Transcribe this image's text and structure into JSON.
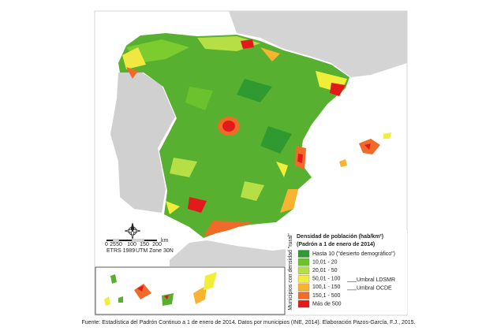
{
  "legend": {
    "title": "Densidad de población (hab/km²)",
    "subtitle": "(Padrón a 1 de enero de 2014)",
    "group_label": "Municipios con densidad \"rural\"",
    "items": [
      {
        "label": "Hasta 10 (\"desierto demográfico\")",
        "color": "#2f9a2f"
      },
      {
        "label": "10,01 - 20",
        "color": "#6cc22c"
      },
      {
        "label": "20,01 - 50",
        "color": "#b6df45"
      },
      {
        "label": "50,01 - 100",
        "color": "#f1ee3a"
      },
      {
        "label": "100,1 - 150",
        "color": "#f8b431"
      },
      {
        "label": "150,1 - 500",
        "color": "#f06a2a"
      },
      {
        "label": "Más de 500",
        "color": "#e31a1c"
      }
    ],
    "thresholds": [
      "Umbral LDSMR",
      "Umbral OCDE"
    ]
  },
  "scale_bar": {
    "labels": [
      "0",
      "25",
      "50",
      "100",
      "150",
      "200"
    ],
    "unit": "km"
  },
  "projection": [
    "ETRS 1989",
    "UTM Zone 30N"
  ],
  "source": "Fuente: Estadística del Padrón Continuo a 1 de enero de 2014. Datos por municipios (INE, 2014). Elaboración Pazos-García, F.J., 2015."
}
